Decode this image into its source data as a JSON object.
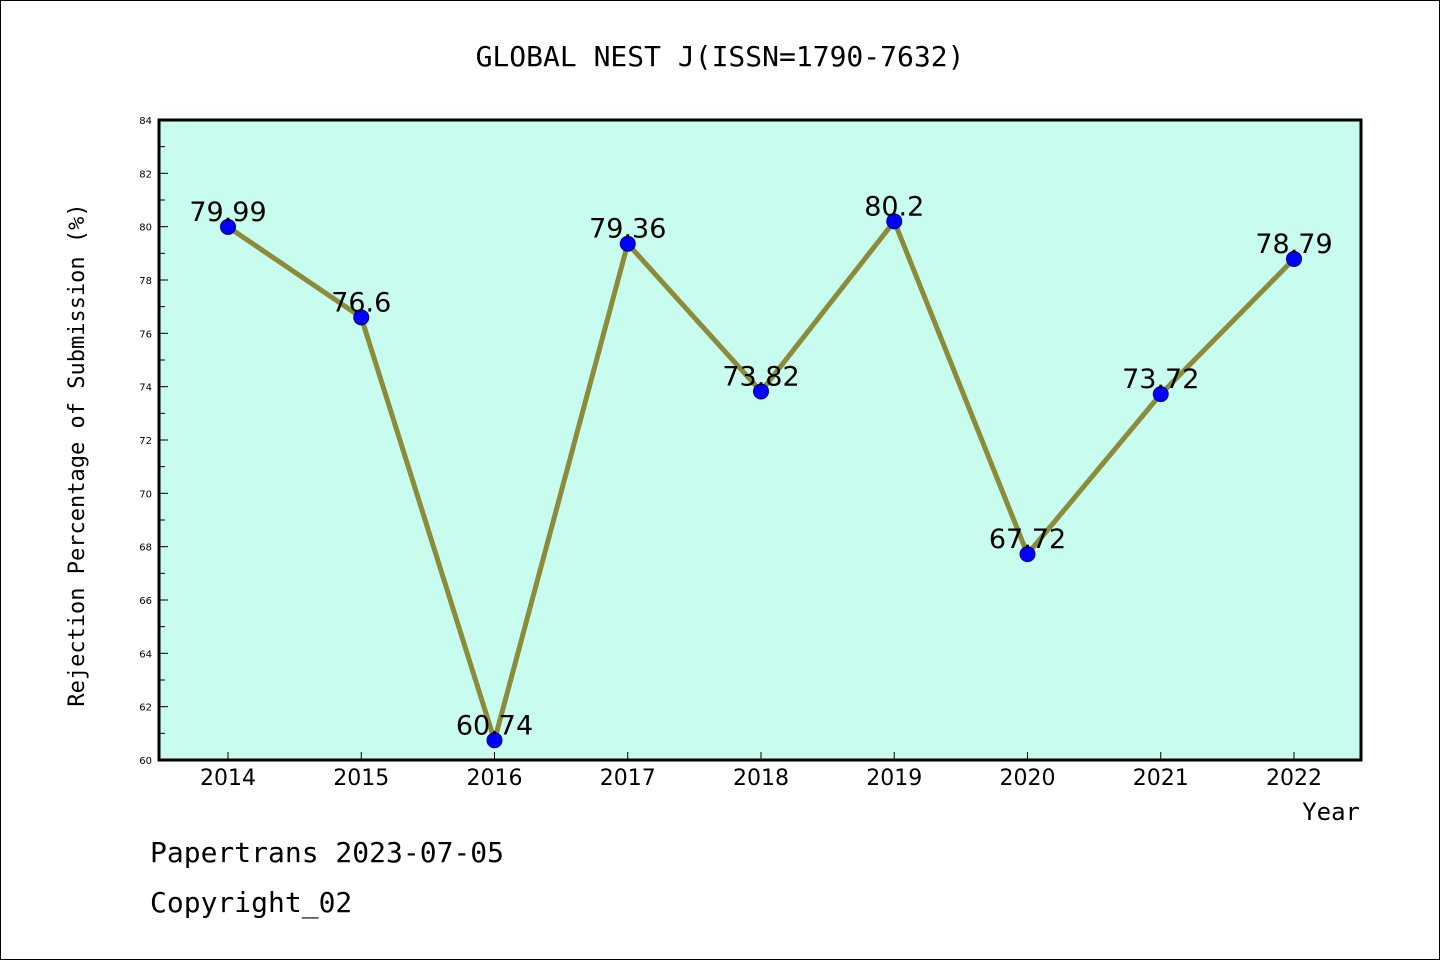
{
  "chart_data": {
    "type": "line",
    "title": "GLOBAL NEST J(ISSN=1790-7632)",
    "xlabel": "Year",
    "ylabel": "Rejection Percentage of Submission (%)",
    "categories": [
      "2014",
      "2015",
      "2016",
      "2017",
      "2018",
      "2019",
      "2020",
      "2021",
      "2022"
    ],
    "values": [
      79.99,
      76.6,
      60.74,
      79.36,
      73.82,
      80.2,
      67.72,
      73.72,
      78.79
    ],
    "data_labels": [
      "79.99",
      "76.6",
      "60.74",
      "79.36",
      "73.82",
      "80.2",
      "67.72",
      "73.72",
      "78.79"
    ],
    "ylim": [
      60,
      84
    ],
    "yticks": [
      60,
      62,
      64,
      66,
      68,
      70,
      72,
      74,
      76,
      78,
      80,
      82,
      84
    ],
    "grid": false,
    "legend": "none",
    "colors": {
      "plot_background": "#c8fcee",
      "line": "#8b8b3a",
      "marker": "#0000ff",
      "marker_edge": "#00008b"
    }
  },
  "footer": {
    "line1": "Papertrans 2023-07-05",
    "line2": "Copyright_02"
  }
}
